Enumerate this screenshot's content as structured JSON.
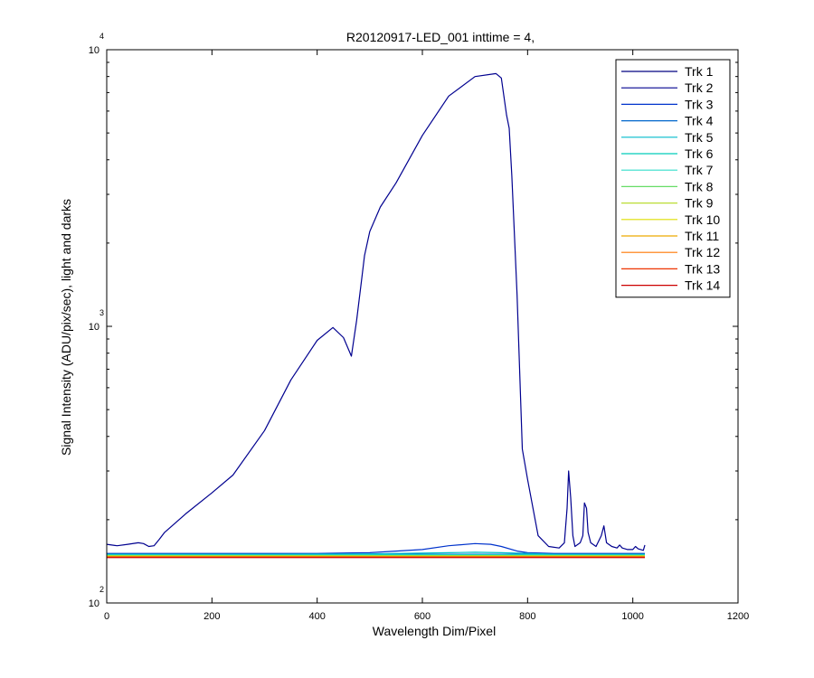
{
  "chart_data": {
    "type": "line",
    "title": "R20120917-LED_001 inttime = 4,",
    "xlabel": "Wavelength Dim/Pixel",
    "ylabel": "Signal Intensity (ADU/pix/sec), light and darks",
    "xlim": [
      0,
      1200
    ],
    "ylim": [
      100,
      10000
    ],
    "yscale": "log",
    "grid": false,
    "legend_position": "top-right",
    "x_ticks": [
      0,
      200,
      400,
      600,
      800,
      1000,
      1200
    ],
    "y_ticks": [
      {
        "value": 100,
        "base": "10",
        "exp": "2"
      },
      {
        "value": 1000,
        "base": "10",
        "exp": "3"
      },
      {
        "value": 10000,
        "base": "10",
        "exp": "4"
      }
    ],
    "series": [
      {
        "name": "Trk 1",
        "color": "#000080",
        "x": [
          0,
          1023
        ],
        "y": [
          149,
          149
        ]
      },
      {
        "name": "Trk 2",
        "color": "#00008F",
        "x": [
          0,
          20,
          40,
          60,
          70,
          80,
          90,
          100,
          110,
          150,
          200,
          240,
          300,
          350,
          400,
          430,
          450,
          465,
          475,
          485,
          490,
          500,
          520,
          550,
          600,
          650,
          700,
          740,
          750,
          760,
          765,
          770,
          780,
          790,
          800,
          820,
          840,
          860,
          870,
          875,
          878,
          882,
          886,
          890,
          900,
          905,
          908,
          912,
          915,
          920,
          930,
          940,
          945,
          950,
          960,
          970,
          975,
          980,
          990,
          1000,
          1005,
          1010,
          1020,
          1023
        ],
        "y": [
          163,
          161,
          163,
          165,
          164,
          160,
          161,
          170,
          180,
          210,
          250,
          290,
          420,
          640,
          890,
          990,
          910,
          780,
          1050,
          1500,
          1800,
          2200,
          2700,
          3300,
          4900,
          6800,
          8000,
          8200,
          7900,
          5800,
          5200,
          3500,
          1300,
          360,
          280,
          175,
          160,
          158,
          165,
          220,
          300,
          240,
          175,
          160,
          165,
          175,
          230,
          220,
          180,
          165,
          160,
          175,
          190,
          165,
          160,
          158,
          162,
          158,
          156,
          156,
          160,
          157,
          155,
          162
        ]
      },
      {
        "name": "Trk 3",
        "color": "#0033CC",
        "x": [
          0,
          200,
          400,
          500,
          600,
          650,
          700,
          730,
          750,
          780,
          800,
          850,
          900,
          1023
        ],
        "y": [
          151,
          151,
          151,
          152,
          156,
          161,
          164,
          163,
          160,
          154,
          152,
          151,
          151,
          151
        ]
      },
      {
        "name": "Trk 4",
        "color": "#0066CC",
        "x": [
          0,
          1023
        ],
        "y": [
          150,
          150
        ]
      },
      {
        "name": "Trk 5",
        "color": "#00BBCC",
        "x": [
          0,
          300,
          500,
          650,
          700,
          750,
          850,
          1023
        ],
        "y": [
          150,
          150,
          150.5,
          152,
          152.5,
          152,
          150,
          150
        ]
      },
      {
        "name": "Trk 6",
        "color": "#00CCBB",
        "x": [
          0,
          1023
        ],
        "y": [
          149.5,
          149.5
        ]
      },
      {
        "name": "Trk 7",
        "color": "#33DDCC",
        "x": [
          0,
          1023
        ],
        "y": [
          148.8,
          148.8
        ]
      },
      {
        "name": "Trk 8",
        "color": "#66DD66",
        "x": [
          0,
          1023
        ],
        "y": [
          148.3,
          148.3
        ]
      },
      {
        "name": "Trk 9",
        "color": "#BBDD33",
        "x": [
          0,
          1023
        ],
        "y": [
          147.9,
          147.9
        ]
      },
      {
        "name": "Trk 10",
        "color": "#DDDD00",
        "x": [
          0,
          1023
        ],
        "y": [
          147.5,
          147.5
        ]
      },
      {
        "name": "Trk 11",
        "color": "#EEAA00",
        "x": [
          0,
          1023
        ],
        "y": [
          147.1,
          147.1
        ]
      },
      {
        "name": "Trk 12",
        "color": "#FF7700",
        "x": [
          0,
          1023
        ],
        "y": [
          146.7,
          146.7
        ]
      },
      {
        "name": "Trk 13",
        "color": "#EE3300",
        "x": [
          0,
          1023
        ],
        "y": [
          146.3,
          146.3
        ]
      },
      {
        "name": "Trk 14",
        "color": "#CC0000",
        "x": [
          0,
          1023
        ],
        "y": [
          145.9,
          145.9
        ]
      }
    ]
  }
}
